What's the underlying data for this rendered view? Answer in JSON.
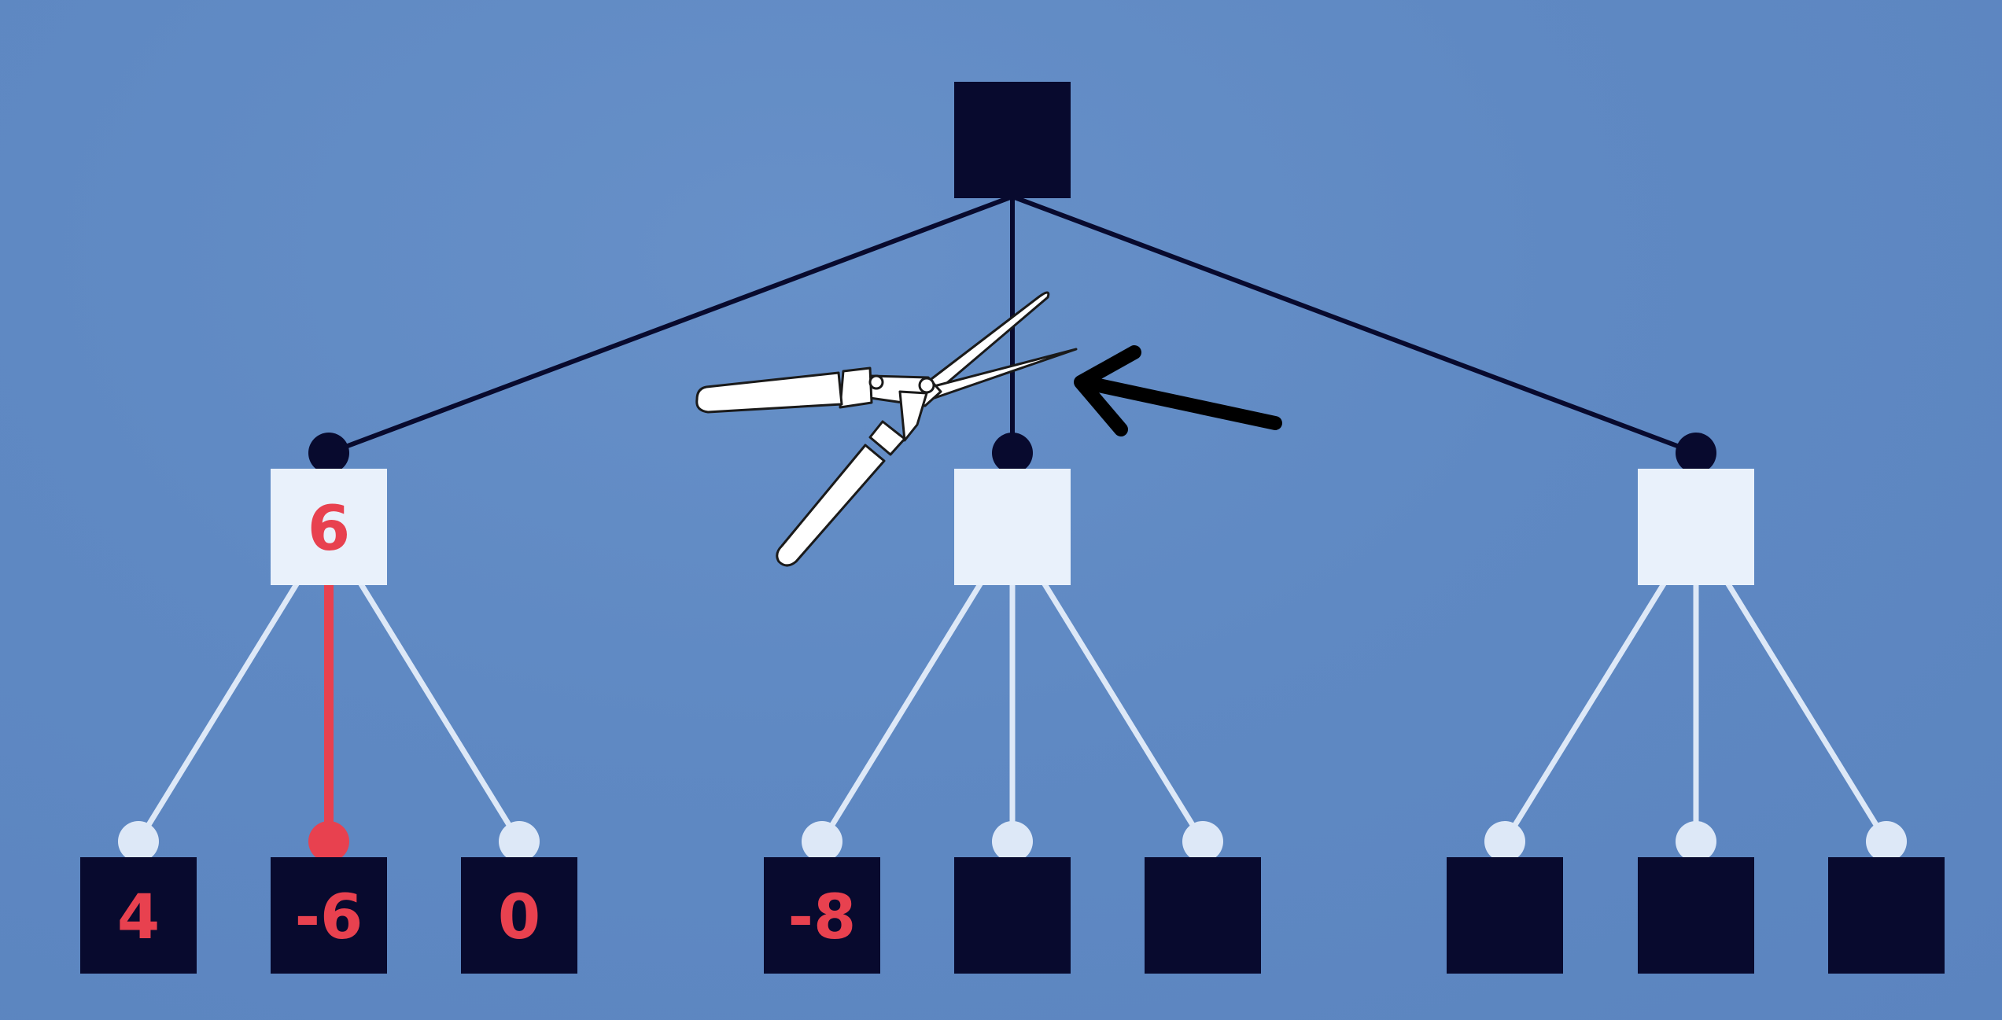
{
  "colors": {
    "background": "#6089c3",
    "dark_node": "#080a2e",
    "light_node": "#e9f1fb",
    "light_edge": "#dde8f7",
    "highlight": "#e8414f",
    "shears": "#ffffff",
    "arrow": "#000000"
  },
  "tree": {
    "root": {
      "shade": "dark"
    },
    "level1": [
      {
        "label": "6",
        "shade": "light"
      },
      {
        "label": "",
        "shade": "light"
      },
      {
        "label": "",
        "shade": "light"
      }
    ],
    "leaves": [
      {
        "label": "4",
        "parent": 0
      },
      {
        "label": "-6",
        "parent": 0,
        "highlighted": true
      },
      {
        "label": "0",
        "parent": 0
      },
      {
        "label": "-8",
        "parent": 1
      },
      {
        "label": "",
        "parent": 1
      },
      {
        "label": "",
        "parent": 1
      },
      {
        "label": "",
        "parent": 2
      },
      {
        "label": "",
        "parent": 2
      },
      {
        "label": "",
        "parent": 2
      }
    ]
  },
  "annotations": {
    "tool_icon": "pruning-shears-icon",
    "pointer_icon": "arrow-left-icon"
  }
}
